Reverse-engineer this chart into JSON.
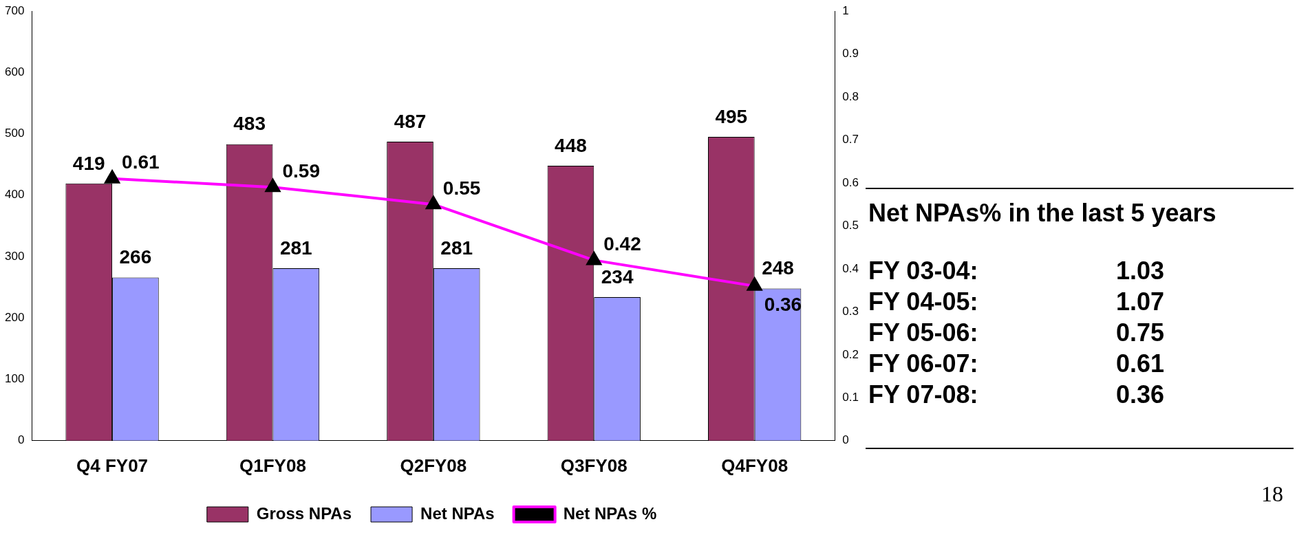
{
  "chart_data": {
    "type": "bar",
    "categories": [
      "Q4 FY07",
      "Q1FY08",
      "Q2FY08",
      "Q3FY08",
      "Q4FY08"
    ],
    "series": [
      {
        "name": "Gross NPAs",
        "color": "#993366",
        "values": [
          419,
          483,
          487,
          448,
          495
        ]
      },
      {
        "name": "Net NPAs",
        "color": "#9999ff",
        "values": [
          266,
          281,
          281,
          234,
          248
        ]
      },
      {
        "name": "Net NPAs %",
        "type": "line",
        "axis": "y2",
        "color": "#ff00ff",
        "values": [
          0.61,
          0.59,
          0.55,
          0.42,
          0.36
        ]
      }
    ],
    "ylim": [
      0,
      700
    ],
    "yticks": [
      0,
      100,
      200,
      300,
      400,
      500,
      600,
      700
    ],
    "y2lim": [
      0,
      1
    ],
    "y2ticks": [
      0,
      0.1,
      0.2,
      0.3,
      0.4,
      0.5,
      0.6,
      0.7,
      0.8,
      0.9,
      1
    ],
    "data_labels": true,
    "legend": "bottom",
    "grid": false,
    "marker": "triangle",
    "annotations": [
      "Net NPAs% in the last 5 years",
      "FY 03-04:",
      "1.03",
      "FY 04-05:",
      "1.07",
      "FY 05-06:",
      "0.75",
      "FY 06-07:",
      "0.61",
      "FY 07-08:",
      "0.36",
      "18"
    ]
  }
}
